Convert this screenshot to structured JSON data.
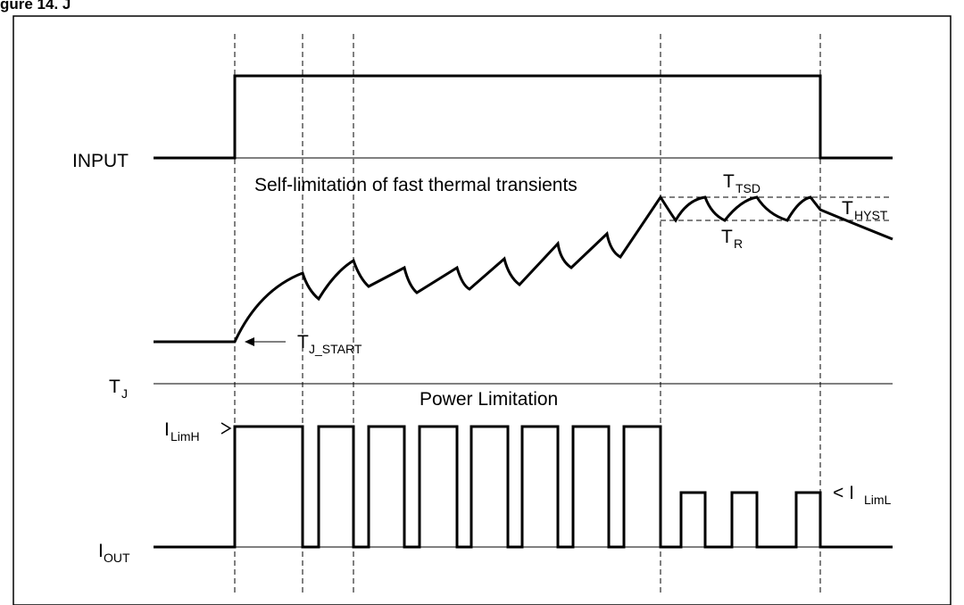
{
  "header": {
    "title_fragment": "gure 14. J"
  },
  "labels": {
    "input": "INPUT",
    "self_limitation": "Self-limitation of  fast thermal transients",
    "t_tsd_main": "T",
    "t_tsd_sub": "TSD",
    "t_hyst_main": "T",
    "t_hyst_sub": "HYST",
    "t_r_main": "T",
    "t_r_sub": "R",
    "t_j_start_main": "T",
    "t_j_start_sub": "J_START",
    "t_j_main": "T",
    "t_j_sub": "J",
    "power_limitation": "Power Limitation",
    "i_limh_main": "I",
    "i_limh_sub": "LimH",
    "i_liml_prefix": "< I",
    "i_liml_sub": "LimL",
    "i_out_main": "I",
    "i_out_sub": "OUT"
  }
}
